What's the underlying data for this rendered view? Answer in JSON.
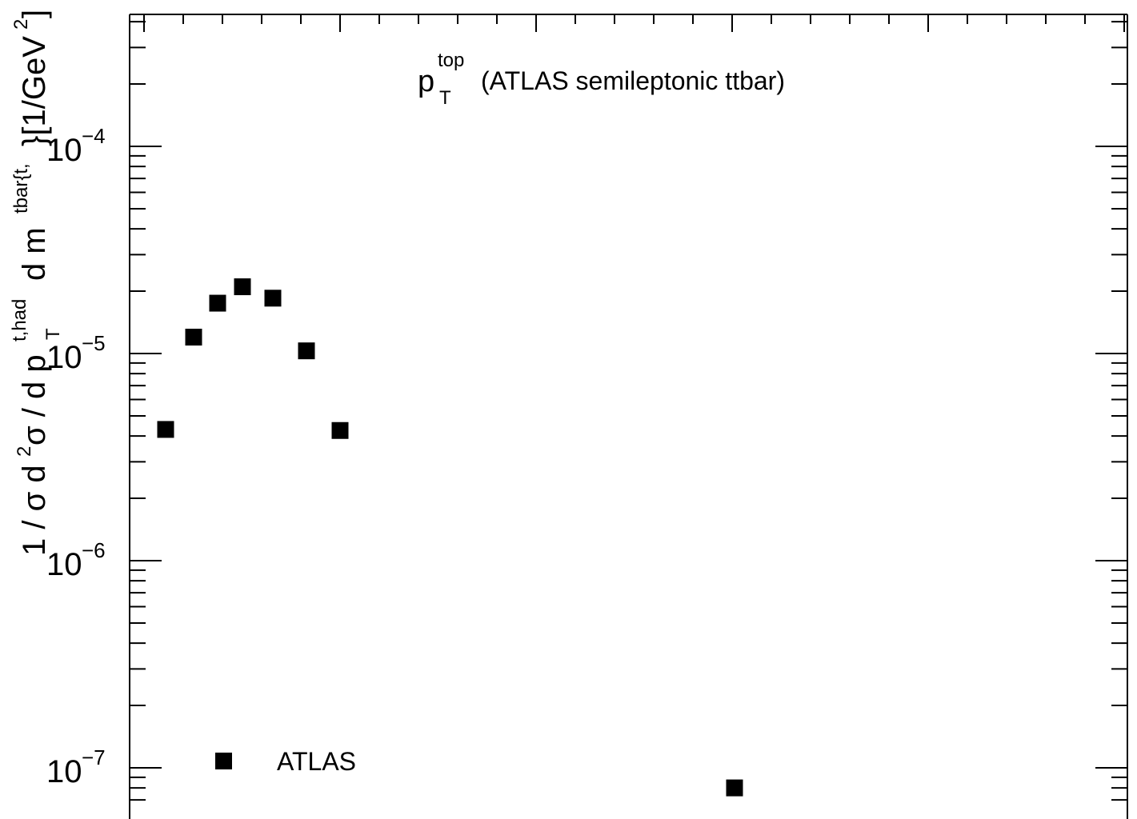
{
  "chart_data": {
    "type": "scatter",
    "title_main": "p",
    "title_sup": "top",
    "title_sub": "T",
    "title_rest": "(ATLAS semileptonic ttbar)",
    "ylabel_pre": "1 / σ d",
    "ylabel_mid": "σ /  d p",
    "ylabel_pt_sup": "t,had",
    "ylabel_pt_sub": "T",
    "ylabel_m": "d m",
    "ylabel_m_sup": "tbar{t,",
    "ylabel_post": "}[1/GeV",
    "ylabel_post_sup": "2",
    "ylabel_end": "]",
    "yscale": "log",
    "ylim": [
      6.2e-08,
      0.00042
    ],
    "ytick_labels": [
      {
        "value": 1e-07,
        "base": "10",
        "exp": "−7"
      },
      {
        "value": 1e-06,
        "base": "10",
        "exp": "−6"
      },
      {
        "value": 1e-05,
        "base": "10",
        "exp": "−5"
      },
      {
        "value": 0.0001,
        "base": "10",
        "exp": "−4"
      }
    ],
    "marker": "filled-square",
    "series": [
      {
        "name": "ATLAS",
        "points": [
          {
            "x": 1,
            "y": 4.3e-06
          },
          {
            "x": 2,
            "y": 1.2e-05
          },
          {
            "x": 3,
            "y": 1.75e-05
          },
          {
            "x": 4,
            "y": 2.1e-05
          },
          {
            "x": 5,
            "y": 1.85e-05
          },
          {
            "x": 6,
            "y": 1.03e-05
          },
          {
            "x": 7,
            "y": 4.25e-06
          },
          {
            "x": 8,
            "y": 8e-08
          }
        ]
      }
    ],
    "legend_position": "bottom-left",
    "color": "#000000"
  }
}
